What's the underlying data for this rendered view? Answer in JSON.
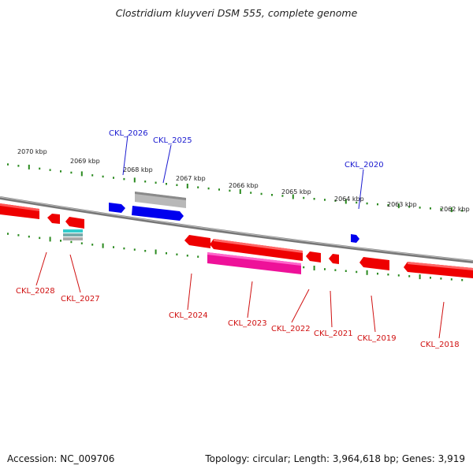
{
  "title": "Clostridium kluyveri DSM 555, complete genome",
  "footer": {
    "accession": "Accession: NC_009706",
    "summary": "Topology: circular; Length: 3,964,618 bp; Genes: 3,919"
  },
  "colors": {
    "background": "#ffffff",
    "backbone": "#888888",
    "tick": "#2a8a1f",
    "forward_gene": "#0000ee",
    "forward_label": "#1a1ad0",
    "reverse_gene": "#ee0000",
    "reverse_label": "#d01010",
    "rna_gene": "#ee1199",
    "pseudo_gene": "#aaaaaa",
    "trna_gene": "#33cccc"
  },
  "scale_labels": [
    "2070 kbp",
    "2069 kbp",
    "2068 kbp",
    "2067 kbp",
    "2066 kbp",
    "2065 kbp",
    "2064 kbp",
    "2063 kbp",
    "2062 kbp"
  ],
  "forward_genes": [
    "CKL_2026",
    "CKL_2025",
    "CKL_2020"
  ],
  "reverse_genes": [
    "CKL_2028",
    "CKL_2027",
    "CKL_2024",
    "CKL_2023",
    "CKL_2022",
    "CKL_2021",
    "CKL_2019",
    "CKL_2018"
  ]
}
